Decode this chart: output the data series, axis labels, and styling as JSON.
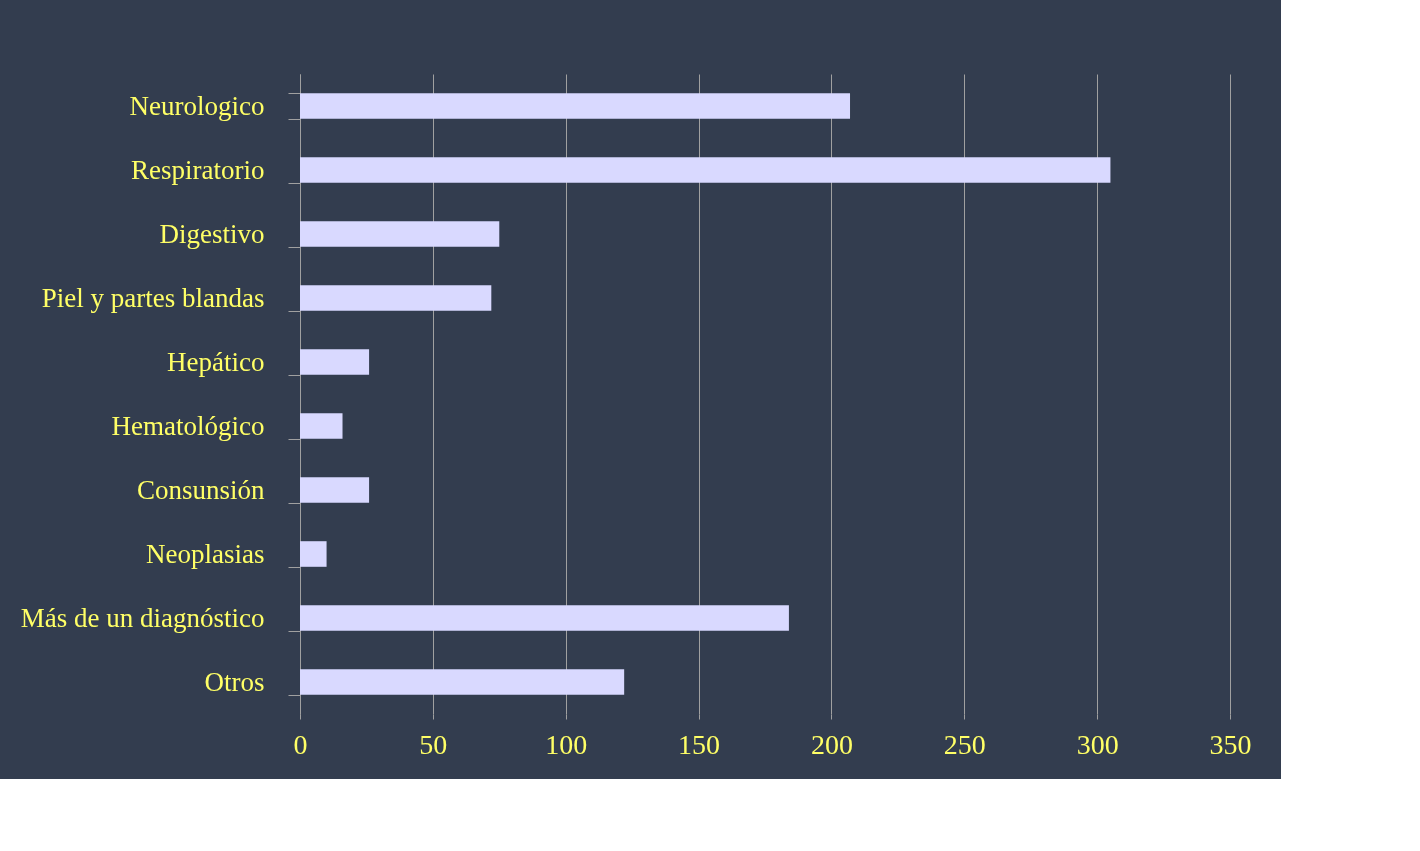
{
  "chart_data": {
    "type": "bar",
    "orientation": "horizontal",
    "categories": [
      "Neurologico",
      "Respiratorio",
      "Digestivo",
      "Piel y partes blandas",
      "Hepático",
      "Hematológico",
      "Consunsión",
      "Neoplasias",
      "Más de un diagnóstico",
      "Otros"
    ],
    "values": [
      207,
      305,
      75,
      72,
      26,
      16,
      26,
      10,
      184,
      122
    ],
    "color": "#d9d9ff",
    "xlim": [
      0,
      350
    ],
    "xticks": [
      0,
      50,
      100,
      150,
      200,
      250,
      300,
      350
    ],
    "grid": "x"
  }
}
